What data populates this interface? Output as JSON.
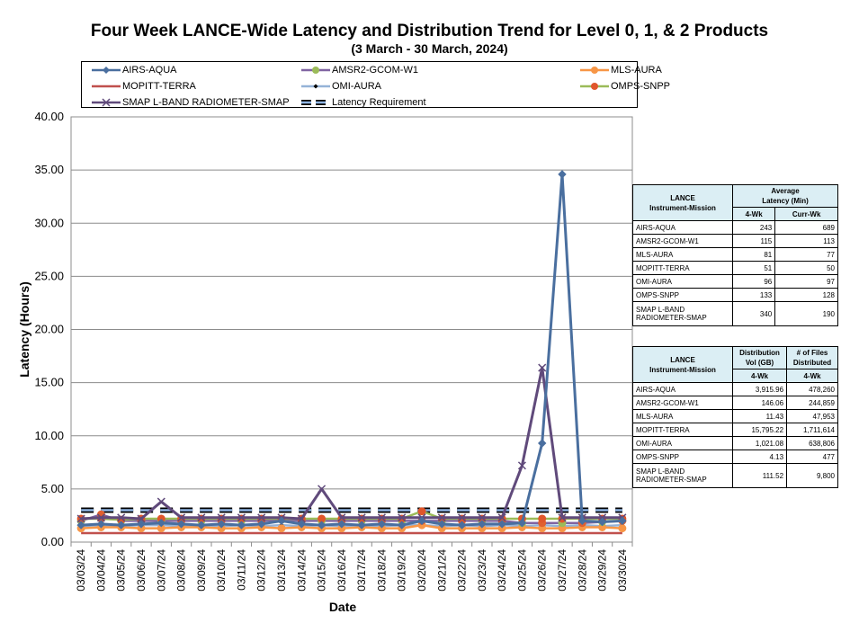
{
  "chart_data": {
    "type": "line",
    "title": "Four Week LANCE-Wide Latency and Distribution Trend for Level 0, 1, & 2 Products",
    "subtitle": "(3  March   -  30  March,  2024)",
    "xlabel": "Date",
    "ylabel": "Latency (Hours)",
    "ylim": [
      0,
      40
    ],
    "yticks": [
      "0.00",
      "5.00",
      "10.00",
      "15.00",
      "20.00",
      "25.00",
      "30.00",
      "35.00",
      "40.00"
    ],
    "grid": true,
    "legend_position": "top",
    "categories": [
      "03/03/24",
      "03/04/24",
      "03/05/24",
      "03/06/24",
      "03/07/24",
      "03/08/24",
      "03/09/24",
      "03/10/24",
      "03/11/24",
      "03/12/24",
      "03/13/24",
      "03/14/24",
      "03/15/24",
      "03/16/24",
      "03/17/24",
      "03/18/24",
      "03/19/24",
      "03/20/24",
      "03/21/24",
      "03/22/24",
      "03/23/24",
      "03/24/24",
      "03/25/24",
      "03/26/24",
      "03/27/24",
      "03/28/24",
      "03/29/24",
      "03/30/24"
    ],
    "series": [
      {
        "name": "AIRS-AQUA",
        "color": "#4a6f9f",
        "marker": "diamond",
        "values": [
          1.6,
          1.7,
          1.6,
          1.7,
          1.8,
          1.7,
          1.6,
          1.7,
          1.6,
          1.7,
          2.0,
          1.7,
          1.6,
          1.7,
          1.6,
          1.7,
          1.6,
          2.0,
          1.7,
          1.6,
          1.7,
          1.7,
          1.8,
          9.3,
          34.6,
          2.0,
          1.9,
          2.0
        ]
      },
      {
        "name": "AMSR2-GCOM-W1",
        "color": "#8064a2",
        "marker": "circle",
        "values": [
          2.0,
          2.6,
          2.0,
          2.0,
          2.0,
          2.0,
          2.0,
          2.0,
          2.0,
          2.0,
          2.1,
          2.0,
          2.0,
          2.0,
          2.0,
          2.0,
          2.0,
          2.0,
          2.0,
          2.0,
          2.0,
          2.0,
          1.8,
          1.8,
          1.8,
          1.8,
          1.9,
          2.0
        ]
      },
      {
        "name": "MLS-AURA",
        "color": "#f79646",
        "marker": "circle",
        "values": [
          1.3,
          1.4,
          1.4,
          1.3,
          1.3,
          1.4,
          1.4,
          1.3,
          1.3,
          1.4,
          1.3,
          1.4,
          1.3,
          1.3,
          1.4,
          1.3,
          1.3,
          1.6,
          1.3,
          1.3,
          1.3,
          1.3,
          1.4,
          1.3,
          1.3,
          1.4,
          1.4,
          1.3
        ]
      },
      {
        "name": "MOPITT-TERRA",
        "color": "#c0504d",
        "marker": "none",
        "values": [
          0.85,
          0.85,
          0.85,
          0.85,
          0.85,
          0.85,
          0.85,
          0.85,
          0.85,
          0.85,
          0.85,
          0.85,
          0.85,
          0.85,
          0.85,
          0.85,
          0.85,
          0.85,
          0.85,
          0.85,
          0.85,
          0.85,
          0.85,
          0.85,
          0.85,
          0.85,
          0.85,
          0.85
        ]
      },
      {
        "name": "OMI-AURA",
        "color": "#95b3d7",
        "marker": "none",
        "values": [
          1.5,
          1.6,
          1.5,
          1.6,
          1.6,
          1.5,
          1.6,
          1.5,
          1.6,
          1.5,
          1.6,
          1.5,
          1.6,
          1.5,
          1.6,
          1.5,
          1.6,
          1.6,
          1.5,
          1.6,
          1.5,
          1.6,
          1.5,
          1.6,
          1.5,
          1.6,
          1.5,
          1.6
        ]
      },
      {
        "name": "OMPS-SNPP",
        "color": "#9bbb59",
        "marker": "circle",
        "values": [
          2.2,
          2.2,
          2.1,
          2.2,
          2.2,
          2.2,
          2.2,
          2.2,
          2.2,
          2.2,
          2.2,
          2.2,
          2.2,
          2.2,
          2.2,
          2.2,
          2.2,
          2.9,
          2.2,
          2.2,
          2.2,
          2.2,
          2.2,
          2.2,
          2.2,
          2.2,
          2.2,
          2.2
        ]
      },
      {
        "name": "SMAP L-BAND RADIOMETER-SMAP",
        "color": "#604a7b",
        "marker": "x",
        "values": [
          2.2,
          2.3,
          2.3,
          2.2,
          3.8,
          2.3,
          2.3,
          2.3,
          2.3,
          2.3,
          2.3,
          2.2,
          5.0,
          2.3,
          2.3,
          2.3,
          2.3,
          2.3,
          2.3,
          2.3,
          2.3,
          2.3,
          7.2,
          16.4,
          2.3,
          2.3,
          2.3,
          2.3
        ]
      },
      {
        "name": "Latency Requirement",
        "color": "#1f3a5f",
        "marker": "none",
        "dashed": true,
        "values": [
          3,
          3,
          3,
          3,
          3,
          3,
          3,
          3,
          3,
          3,
          3,
          3,
          3,
          3,
          3,
          3,
          3,
          3,
          3,
          3,
          3,
          3,
          3,
          3,
          3,
          3,
          3,
          3
        ]
      }
    ]
  },
  "legend": [
    "AIRS-AQUA",
    "AMSR2-GCOM-W1",
    "MLS-AURA",
    "MOPITT-TERRA",
    "OMI-AURA",
    "OMPS-SNPP",
    "SMAP L-BAND RADIOMETER-SMAP",
    "Latency Requirement"
  ],
  "latency_table": {
    "h_instrument": "LANCE\nInstrument-Mission",
    "h_metric": "Average\nLatency (Min)",
    "h_col1": "4-Wk",
    "h_col2": "Curr-Wk",
    "rows": [
      {
        "name": "AIRS-AQUA",
        "a": "243",
        "b": "689"
      },
      {
        "name": "AMSR2-GCOM-W1",
        "a": "115",
        "b": "113"
      },
      {
        "name": "MLS-AURA",
        "a": "81",
        "b": "77"
      },
      {
        "name": "MOPITT-TERRA",
        "a": "51",
        "b": "50"
      },
      {
        "name": "OMI-AURA",
        "a": "96",
        "b": "97"
      },
      {
        "name": "OMPS-SNPP",
        "a": "133",
        "b": "128"
      },
      {
        "name": "SMAP L-BAND\nRADIOMETER-SMAP",
        "a": "340",
        "b": "190"
      }
    ]
  },
  "distribution_table": {
    "h_instrument": "LANCE\nInstrument-Mission",
    "h_vol": "Distribution\nVol (GB)",
    "h_files": "# of Files\nDistributed",
    "h_col1": "4-Wk",
    "h_col2": "4-Wk",
    "rows": [
      {
        "name": "AIRS-AQUA",
        "a": "3,915.96",
        "b": "478,260"
      },
      {
        "name": "AMSR2-GCOM-W1",
        "a": "146.06",
        "b": "244,859"
      },
      {
        "name": "MLS-AURA",
        "a": "11.43",
        "b": "47,953"
      },
      {
        "name": "MOPITT-TERRA",
        "a": "15,795.22",
        "b": "1,711,614"
      },
      {
        "name": "OMI-AURA",
        "a": "1,021.08",
        "b": "638,806"
      },
      {
        "name": "OMPS-SNPP",
        "a": "4.13",
        "b": "477"
      },
      {
        "name": "SMAP L-BAND\nRADIOMETER-SMAP",
        "a": "111.52",
        "b": "9,800"
      }
    ]
  }
}
